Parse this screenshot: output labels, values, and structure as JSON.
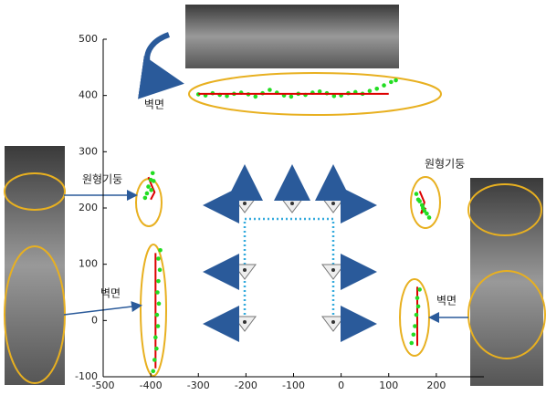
{
  "chart_data": {
    "type": "scatter",
    "xlim": [
      -500,
      300
    ],
    "ylim": [
      -100,
      500
    ],
    "xticks": [
      -500,
      -400,
      -300,
      -200,
      -100,
      0,
      100,
      200
    ],
    "yticks": [
      -100,
      0,
      100,
      200,
      300,
      400,
      500
    ],
    "annotations": [
      "벽면",
      "원형기둥",
      "벽면",
      "원형기둥",
      "벽면"
    ],
    "series": [
      {
        "kind": "points",
        "color": "#22dd22",
        "x": [
          -300,
          -285,
          -270,
          -255,
          -240,
          -225,
          -210,
          -195,
          -180,
          -165,
          -150,
          -135,
          -120,
          -105,
          -90,
          -75,
          -60,
          -45,
          -30,
          -15,
          0,
          15,
          30,
          45,
          60,
          75,
          90,
          105,
          115
        ],
        "values": [
          402,
          400,
          404,
          401,
          399,
          403,
          405,
          402,
          398,
          404,
          410,
          405,
          400,
          398,
          403,
          401,
          405,
          407,
          404,
          399,
          400,
          404,
          406,
          403,
          408,
          412,
          418,
          424,
          427
        ]
      },
      {
        "kind": "line",
        "color": "#dd0000",
        "x": [
          -300,
          100
        ],
        "values": [
          403,
          403
        ]
      },
      {
        "kind": "line",
        "color": "#dd0000",
        "x": [
          -400,
          -392,
          -398,
          -405
        ],
        "values": [
          215,
          228,
          240,
          255
        ]
      },
      {
        "kind": "points",
        "color": "#22dd22",
        "x": [
          -412,
          -408,
          -405,
          -400,
          -396,
          -394,
          -399
        ],
        "values": [
          218,
          226,
          238,
          250,
          262,
          248,
          232
        ]
      },
      {
        "kind": "line",
        "color": "#dd0000",
        "x": [
          -390,
          -390
        ],
        "values": [
          -85,
          120
        ]
      },
      {
        "kind": "points",
        "color": "#22dd22",
        "x": [
          -395,
          -392,
          -388,
          -390,
          -385,
          -387,
          -383,
          -386,
          -384,
          -381,
          -384,
          -380
        ],
        "values": [
          -90,
          -70,
          -50,
          -30,
          -10,
          10,
          30,
          50,
          70,
          90,
          110,
          125
        ]
      },
      {
        "kind": "line",
        "color": "#dd0000",
        "x": [
          165,
          175,
          168,
          178
        ],
        "values": [
          230,
          210,
          190,
          200
        ]
      },
      {
        "kind": "points",
        "color": "#22dd22",
        "x": [
          158,
          162,
          170,
          175,
          180,
          185,
          172,
          165
        ],
        "values": [
          225,
          215,
          205,
          195,
          190,
          183,
          200,
          212
        ]
      },
      {
        "kind": "line",
        "color": "#dd0000",
        "x": [
          160,
          160
        ],
        "values": [
          -45,
          60
        ]
      },
      {
        "kind": "points",
        "color": "#22dd22",
        "x": [
          148,
          152,
          155,
          158,
          162,
          160,
          165
        ],
        "values": [
          -40,
          -25,
          -10,
          10,
          25,
          40,
          55
        ]
      }
    ]
  }
}
